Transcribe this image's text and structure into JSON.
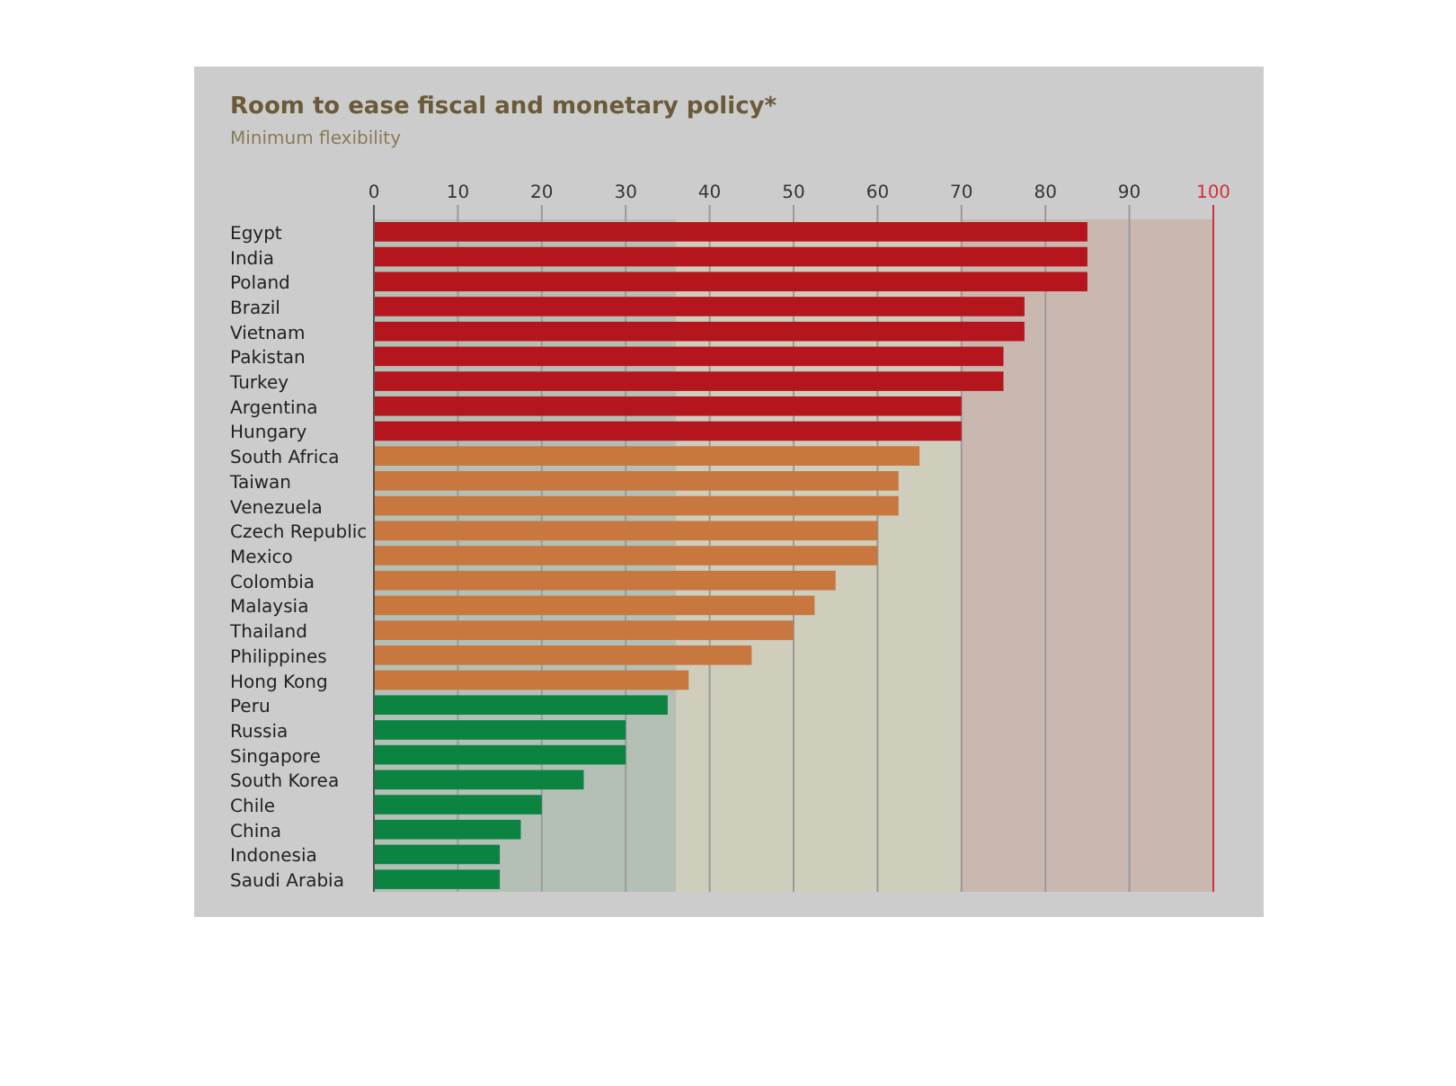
{
  "chart_data": {
    "type": "bar",
    "orientation": "horizontal",
    "title": "Room to ease fiscal and monetary policy*",
    "subtitle": "Minimum flexibility",
    "categories": [
      "Egypt",
      "India",
      "Poland",
      "Brazil",
      "Vietnam",
      "Pakistan",
      "Turkey",
      "Argentina",
      "Hungary",
      "South Africa",
      "Taiwan",
      "Venezuela",
      "Czech Republic",
      "Mexico",
      "Colombia",
      "Malaysia",
      "Thailand",
      "Philippines",
      "Hong Kong",
      "Peru",
      "Russia",
      "Singapore",
      "South Korea",
      "Chile",
      "China",
      "Indonesia",
      "Saudi Arabia"
    ],
    "values": [
      85,
      85,
      85,
      77.5,
      77.5,
      75,
      75,
      70,
      70,
      65,
      62.5,
      62.5,
      60,
      60,
      55,
      52.5,
      50,
      45,
      37.5,
      35,
      30,
      30,
      25,
      20,
      17.5,
      15,
      15
    ],
    "colors": [
      "#b5161e",
      "#b5161e",
      "#b5161e",
      "#b5161e",
      "#b5161e",
      "#b5161e",
      "#b5161e",
      "#b5161e",
      "#b5161e",
      "#c8773f",
      "#c8773f",
      "#c8773f",
      "#c8773f",
      "#c8773f",
      "#c8773f",
      "#c8773f",
      "#c8773f",
      "#c8773f",
      "#c8773f",
      "#0b8442",
      "#0b8442",
      "#0b8442",
      "#0b8442",
      "#0b8442",
      "#0b8442",
      "#0b8442",
      "#0b8442"
    ],
    "xlim": [
      0,
      100
    ],
    "xticks": [
      0,
      10,
      20,
      30,
      40,
      50,
      60,
      70,
      80,
      90,
      100
    ],
    "grid": "x",
    "bands": [
      {
        "axis": "x",
        "from": 0,
        "to": 36,
        "color": "#b4c0b5"
      },
      {
        "axis": "x",
        "from": 36,
        "to": 70,
        "color": "#cfcdbc"
      },
      {
        "axis": "x",
        "from": 70,
        "to": 100,
        "color": "#c9b8b0"
      }
    ],
    "ref_lines": [
      {
        "axis": "x",
        "value": 100,
        "color": "#d0313a"
      }
    ]
  }
}
